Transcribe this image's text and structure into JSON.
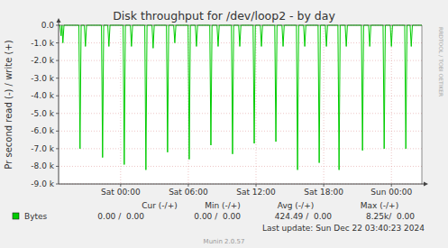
{
  "chart_data": {
    "type": "line",
    "title": "Disk throughput for /dev/loop2 - by day",
    "y_label": "Pr second read (-) / write (+)",
    "x": [
      -5.5,
      -5.38,
      -5.28,
      -5.2,
      -5.12,
      -5.02,
      -3.7,
      -3.6,
      -3.5,
      -3.22,
      -3.12,
      -3.02,
      -1.7,
      -1.6,
      -1.5,
      -1.14,
      -1.04,
      -0.94,
      0.22,
      0.32,
      0.42,
      0.86,
      0.96,
      1.06,
      2.14,
      2.24,
      2.34,
      2.78,
      2.88,
      2.98,
      4.06,
      4.16,
      4.26,
      4.7,
      4.8,
      4.9,
      5.98,
      6.08,
      6.18,
      6.62,
      6.72,
      6.82,
      7.9,
      8.0,
      8.1,
      8.54,
      8.64,
      8.74,
      9.82,
      9.92,
      10.02,
      10.46,
      10.56,
      10.66,
      11.74,
      11.84,
      11.94,
      12.38,
      12.48,
      12.58,
      13.66,
      13.76,
      13.86,
      14.3,
      14.4,
      14.5,
      15.58,
      15.68,
      15.78,
      16.22,
      16.32,
      16.42,
      17.5,
      17.6,
      17.7,
      18.14,
      18.24,
      18.34,
      19.26,
      19.36,
      19.46,
      19.9,
      20.0,
      20.1,
      21.34,
      21.44,
      21.54,
      21.98,
      22.08,
      22.18,
      23.26,
      23.36,
      23.46,
      23.9,
      24.0,
      24.1,
      25.18,
      25.28,
      25.38,
      25.66,
      25.76,
      25.86,
      26.7
    ],
    "series": [
      {
        "name": "Bytes",
        "color": "#00cc00",
        "values": [
          0,
          0,
          -600,
          0,
          -1000,
          0,
          0,
          -7000,
          0,
          0,
          -1200,
          0,
          0,
          -7500,
          0,
          0,
          -1200,
          0,
          0,
          -7900,
          0,
          0,
          -1200,
          0,
          0,
          -8200,
          0,
          0,
          -1300,
          0,
          0,
          -7200,
          0,
          0,
          -1000,
          0,
          0,
          -7600,
          0,
          0,
          -1200,
          0,
          0,
          -6800,
          0,
          0,
          -1200,
          0,
          0,
          -7300,
          0,
          0,
          -1200,
          0,
          0,
          -6700,
          0,
          0,
          -1200,
          0,
          0,
          -6600,
          0,
          0,
          -1200,
          0,
          0,
          -8200,
          0,
          0,
          -1200,
          0,
          0,
          -7800,
          0,
          0,
          -1200,
          0,
          0,
          -8200,
          0,
          0,
          -1200,
          0,
          0,
          -7100,
          0,
          0,
          -1200,
          0,
          0,
          -7000,
          0,
          0,
          -1200,
          0,
          0,
          -7000,
          0,
          0,
          -1200,
          0,
          0
        ],
        "stats": [
          "0.00 /  0.00",
          "0.00 /  0.00",
          "424.49 /  0.00",
          "8.25k/  0.00"
        ]
      }
    ],
    "stat_headers": [
      "Cur (-/+)",
      "Min (-/+)",
      "Avg (-/+)",
      "Max (-/+)"
    ],
    "xlim": [
      -5.5,
      26.7
    ],
    "xticks": [
      {
        "value": 0,
        "label": "Sat 00:00"
      },
      {
        "value": 6,
        "label": "Sat 06:00"
      },
      {
        "value": 12,
        "label": "Sat 12:00"
      },
      {
        "value": 18,
        "label": "Sat 18:00"
      },
      {
        "value": 24,
        "label": "Sun 00:00"
      }
    ],
    "ylim": [
      -9000,
      0
    ],
    "yticks": [
      {
        "value": 0,
        "label": "0.0"
      },
      {
        "value": -1000,
        "label": "-1.0 k"
      },
      {
        "value": -2000,
        "label": "-2.0 k"
      },
      {
        "value": -3000,
        "label": "-3.0 k"
      },
      {
        "value": -4000,
        "label": "-4.0 k"
      },
      {
        "value": -5000,
        "label": "-5.0 k"
      },
      {
        "value": -6000,
        "label": "-6.0 k"
      },
      {
        "value": -7000,
        "label": "-7.0 k"
      },
      {
        "value": -8000,
        "label": "-8.0 k"
      },
      {
        "value": -9000,
        "label": "-9.0 k"
      }
    ],
    "grid": true,
    "footer": "Last update: Sun Dec 22 03:40:23 2024",
    "credit": "Munin 2.0.57",
    "watermark": "RRDTOOL / TOBI OETIKER"
  }
}
